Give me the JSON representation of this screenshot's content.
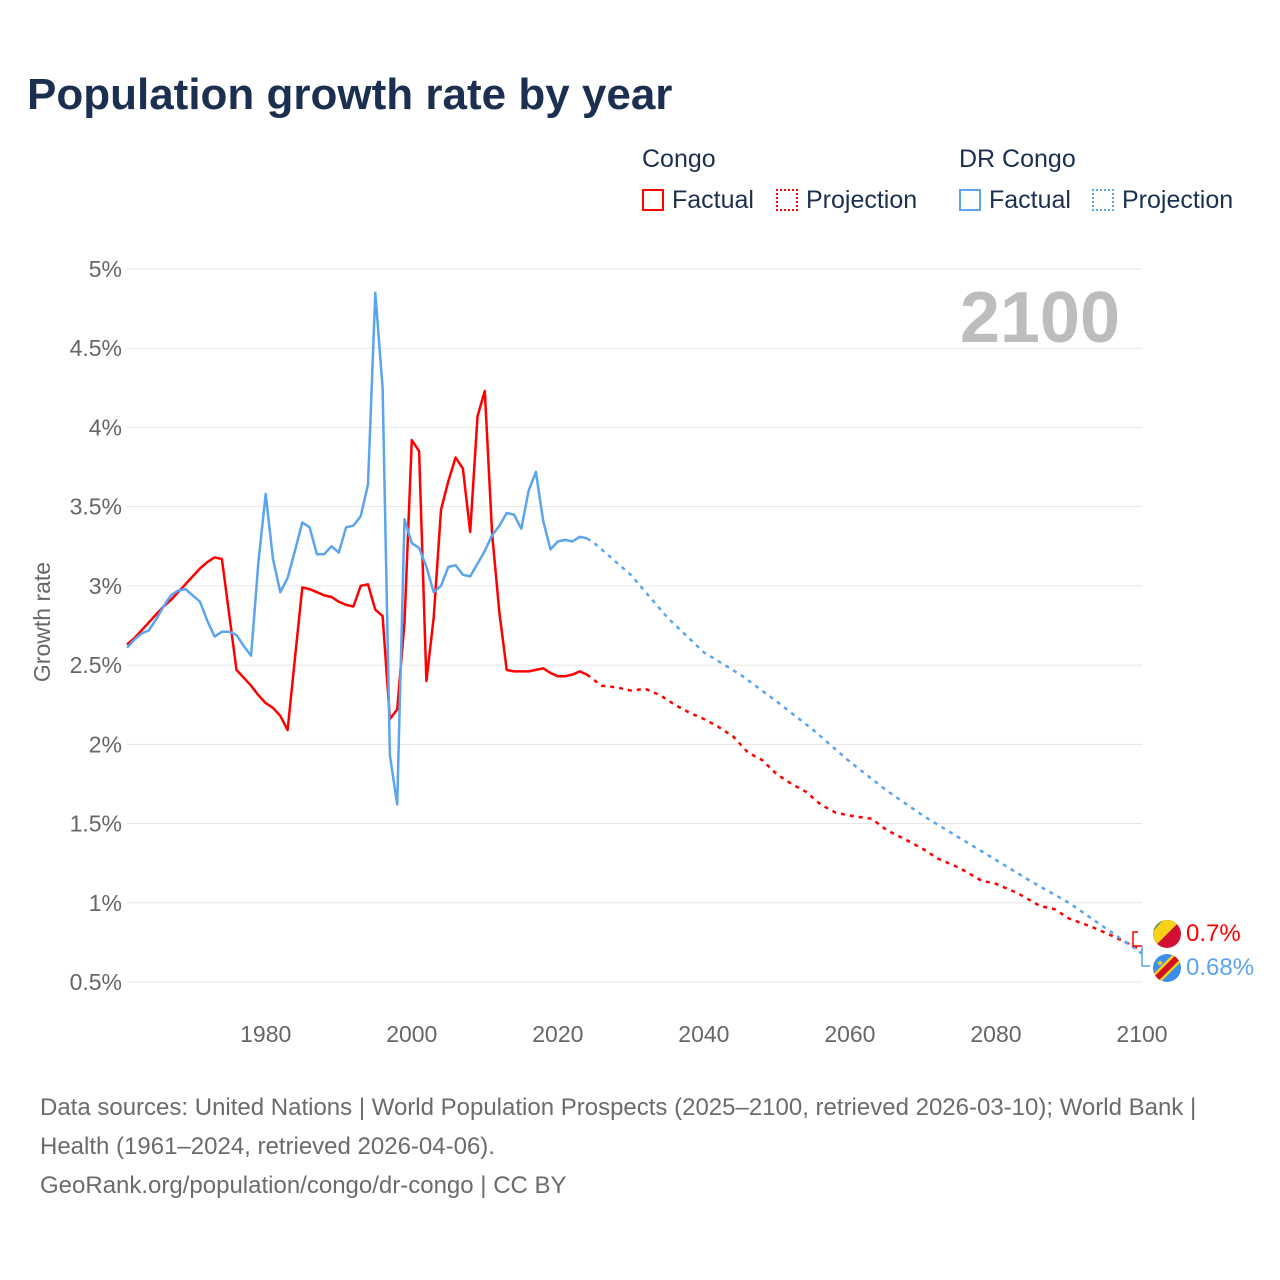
{
  "title": "Population growth rate by year",
  "legend": {
    "groups": [
      {
        "name": "Congo",
        "factual": "Factual",
        "projection": "Projection",
        "color": "#ff0000"
      },
      {
        "name": "DR Congo",
        "factual": "Factual",
        "projection": "Projection",
        "color": "#5ba4ee"
      }
    ]
  },
  "year_label": "2100",
  "end_labels": {
    "congo": "0.7%",
    "drcongo": "0.68%"
  },
  "footer": {
    "sources": "Data sources: United Nations | World Population Prospects (2025–2100, retrieved 2026-03-10); World Bank | Health (1961–2024, retrieved 2026-04-06).",
    "credit": "GeoRank.org/population/congo/dr-congo | CC BY"
  },
  "chart_data": {
    "type": "line",
    "title": "Population growth rate by year",
    "xlabel": "",
    "ylabel": "Growth rate",
    "xlim": [
      1961,
      2100
    ],
    "ylim": [
      0.5,
      5
    ],
    "xticks": [
      1980,
      2000,
      2020,
      2040,
      2060,
      2080,
      2100
    ],
    "yticks": [
      0.5,
      1,
      1.5,
      2,
      2.5,
      3,
      3.5,
      4,
      4.5,
      5
    ],
    "ytick_labels": [
      "0.5%",
      "1%",
      "1.5%",
      "2%",
      "2.5%",
      "3%",
      "3.5%",
      "4%",
      "4.5%",
      "5%"
    ],
    "grid": true,
    "legend_position": "top-right",
    "series": [
      {
        "name": "Congo",
        "kind": "factual",
        "color": "#ff0000",
        "x_start": 1961,
        "values": [
          2.63,
          2.67,
          2.72,
          2.77,
          2.82,
          2.87,
          2.91,
          2.96,
          3.01,
          3.06,
          3.11,
          3.15,
          3.18,
          3.17,
          2.82,
          2.47,
          2.42,
          2.37,
          2.31,
          2.26,
          2.23,
          2.18,
          2.09,
          2.54,
          2.99,
          2.98,
          2.96,
          2.94,
          2.93,
          2.9,
          2.88,
          2.87,
          3.0,
          3.01,
          2.85,
          2.81,
          2.16,
          2.22,
          2.77,
          3.92,
          3.85,
          2.4,
          2.8,
          3.48,
          3.66,
          3.81,
          3.74,
          3.34,
          4.07,
          4.23,
          3.33,
          2.83,
          2.47,
          2.46,
          2.46,
          2.46,
          2.47,
          2.48,
          2.45,
          2.43,
          2.43,
          2.44,
          2.46,
          2.44
        ]
      },
      {
        "name": "Congo",
        "kind": "projection",
        "color": "#ff0000",
        "x": [
          2024,
          2026,
          2028,
          2030,
          2032,
          2034,
          2036,
          2038,
          2040,
          2042,
          2044,
          2046,
          2048,
          2050,
          2052,
          2054,
          2056,
          2058,
          2060,
          2063,
          2065,
          2068,
          2070,
          2072,
          2075,
          2078,
          2080,
          2083,
          2086,
          2088,
          2090,
          2093,
          2096,
          2100
        ],
        "values": [
          2.44,
          2.37,
          2.36,
          2.34,
          2.35,
          2.31,
          2.25,
          2.2,
          2.16,
          2.11,
          2.05,
          1.95,
          1.9,
          1.81,
          1.75,
          1.7,
          1.62,
          1.57,
          1.55,
          1.53,
          1.46,
          1.39,
          1.34,
          1.28,
          1.22,
          1.14,
          1.12,
          1.06,
          0.98,
          0.96,
          0.9,
          0.85,
          0.79,
          0.7
        ]
      },
      {
        "name": "DR Congo",
        "kind": "factual",
        "color": "#5ba4ee",
        "x_start": 1961,
        "values": [
          2.61,
          2.66,
          2.7,
          2.72,
          2.79,
          2.87,
          2.94,
          2.97,
          2.98,
          2.94,
          2.9,
          2.78,
          2.68,
          2.71,
          2.71,
          2.69,
          2.62,
          2.56,
          3.15,
          3.58,
          3.17,
          2.96,
          3.05,
          3.22,
          3.4,
          3.37,
          3.2,
          3.2,
          3.25,
          3.21,
          3.37,
          3.38,
          3.44,
          3.64,
          4.85,
          4.25,
          1.93,
          1.62,
          3.42,
          3.27,
          3.24,
          3.12,
          2.96,
          3.0,
          3.12,
          3.13,
          3.07,
          3.06,
          3.14,
          3.22,
          3.32,
          3.38,
          3.46,
          3.45,
          3.36,
          3.6,
          3.72,
          3.41,
          3.23,
          3.28,
          3.29,
          3.28,
          3.31,
          3.3
        ]
      },
      {
        "name": "DR Congo",
        "kind": "projection",
        "color": "#5ba4ee",
        "x": [
          2024,
          2025,
          2030,
          2035,
          2040,
          2045,
          2050,
          2055,
          2060,
          2065,
          2070,
          2075,
          2080,
          2085,
          2090,
          2095,
          2100
        ],
        "values": [
          3.3,
          3.27,
          3.07,
          2.8,
          2.58,
          2.44,
          2.27,
          2.09,
          1.89,
          1.71,
          1.55,
          1.41,
          1.27,
          1.13,
          1.0,
          0.84,
          0.68
        ]
      }
    ]
  }
}
